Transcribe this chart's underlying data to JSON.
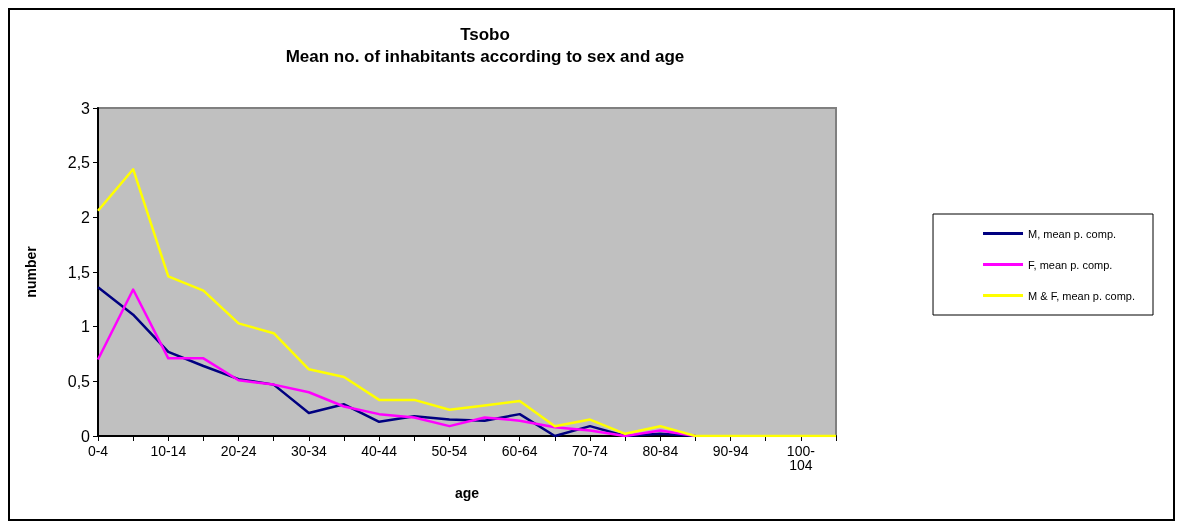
{
  "chart_data": {
    "type": "line",
    "title": "Tsobo\nMean no. of inhabitants according to sex and age",
    "xlabel": "age",
    "ylabel": "number",
    "categories": [
      "0-4",
      null,
      "10-14",
      null,
      "20-24",
      null,
      "30-34",
      null,
      "40-44",
      null,
      "50-54",
      null,
      "60-64",
      null,
      "70-74",
      null,
      "80-84",
      null,
      "90-94",
      null,
      "100-104",
      null
    ],
    "series": [
      {
        "name": "M, mean p. comp.",
        "color": "#000080",
        "values": [
          1.36,
          1.11,
          0.77,
          0.64,
          0.52,
          0.47,
          0.21,
          0.29,
          0.13,
          0.18,
          0.15,
          0.14,
          0.2,
          0,
          0.09,
          0,
          0.02,
          0,
          null,
          null,
          null,
          null
        ]
      },
      {
        "name": "F, mean p. comp.",
        "color": "#ff00ff",
        "values": [
          0.7,
          1.34,
          0.71,
          0.71,
          0.51,
          0.47,
          0.4,
          0.27,
          0.2,
          0.17,
          0.09,
          0.17,
          0.14,
          0.08,
          0.05,
          0,
          0.05,
          0,
          null,
          null,
          null,
          null
        ]
      },
      {
        "name": "M & F, mean p. comp.",
        "color": "#ffff00",
        "values": [
          2.06,
          2.44,
          1.46,
          1.33,
          1.03,
          0.94,
          0.61,
          0.54,
          0.33,
          0.33,
          0.24,
          0.28,
          0.32,
          0.09,
          0.15,
          0.02,
          0.09,
          0,
          0,
          0,
          0,
          0
        ]
      }
    ],
    "ylim": [
      0,
      3
    ],
    "yticks": [
      0,
      {
        "value": 0.5,
        "label": "0,5"
      },
      1,
      {
        "value": 1.5,
        "label": "1,5"
      },
      2,
      {
        "value": 2.5,
        "label": "2,5"
      },
      3
    ],
    "grid": false,
    "legend": "right",
    "marker": "none"
  }
}
